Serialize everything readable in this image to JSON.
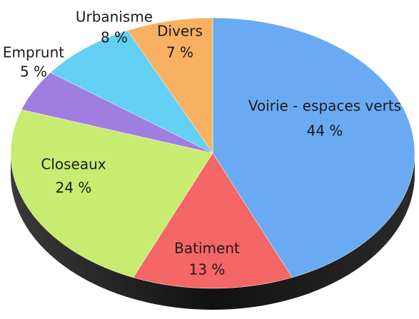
{
  "chart_data": {
    "type": "pie",
    "categories": [
      "Voirie - espaces verts",
      "Batiment",
      "Closeaux",
      "Emprunt",
      "Urbanisme",
      "Divers"
    ],
    "values": [
      44,
      13,
      24,
      5,
      8,
      7
    ],
    "value_labels": [
      "44 %",
      "13 %",
      "24 %",
      "5 %",
      "8 %",
      "7 %"
    ],
    "colors": [
      "#6aaaf2",
      "#f56666",
      "#c8ec70",
      "#a07ee0",
      "#64d0f4",
      "#f8b062"
    ]
  }
}
